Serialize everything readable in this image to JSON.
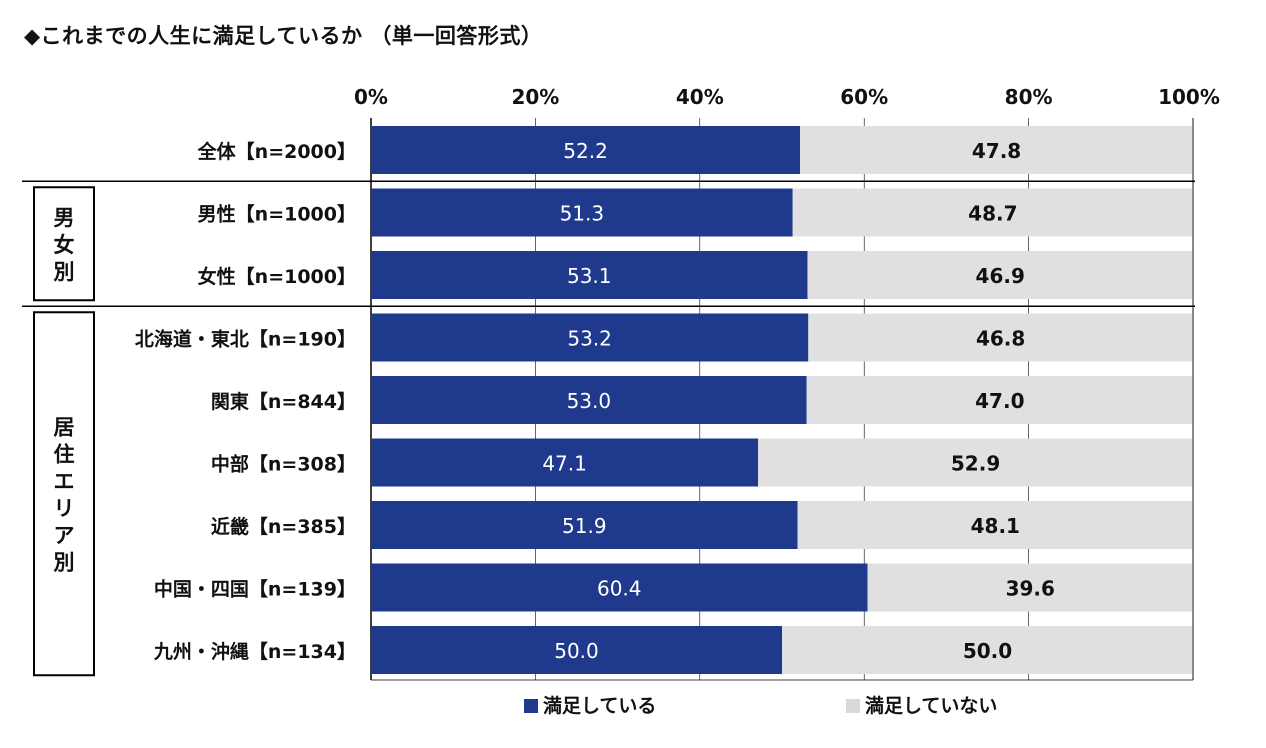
{
  "title": "◆これまでの人生に満足しているか （単一回答形式）",
  "groups": [
    {
      "label": "男女別",
      "from": 1,
      "to": 2
    },
    {
      "label": "居住エリア別",
      "from": 3,
      "to": 8
    }
  ],
  "colors": {
    "satisfied": "#1f3a8c",
    "not_satisfied": "#e0e0e0",
    "grid": "#000000"
  },
  "chart_data": {
    "type": "bar",
    "orientation": "horizontal",
    "stacked": true,
    "categories": [
      "全体【n=2000】",
      "男性【n=1000】",
      "女性【n=1000】",
      "北海道・東北【n=190】",
      "関東【n=844】",
      "中部【n=308】",
      "近畿【n=385】",
      "中国・四国【n=139】",
      "九州・沖縄【n=134】"
    ],
    "series": [
      {
        "name": "満足している",
        "values": [
          52.2,
          51.3,
          53.1,
          53.2,
          53.0,
          47.1,
          51.9,
          60.4,
          50.0
        ]
      },
      {
        "name": "満足していない",
        "values": [
          47.8,
          48.7,
          46.9,
          46.8,
          47.0,
          52.9,
          48.1,
          39.6,
          50.0
        ]
      }
    ],
    "value_labels": [
      [
        "52.2",
        "51.3",
        "53.1",
        "53.2",
        "53.0",
        "47.1",
        "51.9",
        "60.4",
        "50.0"
      ],
      [
        "47.8",
        "48.7",
        "46.9",
        "46.8",
        "47.0",
        "52.9",
        "48.1",
        "39.6",
        "50.0"
      ]
    ],
    "xlim": [
      0,
      100
    ],
    "xticks": [
      "0%",
      "20%",
      "40%",
      "60%",
      "80%",
      "100%"
    ],
    "legend_position": "bottom",
    "grid": true
  }
}
